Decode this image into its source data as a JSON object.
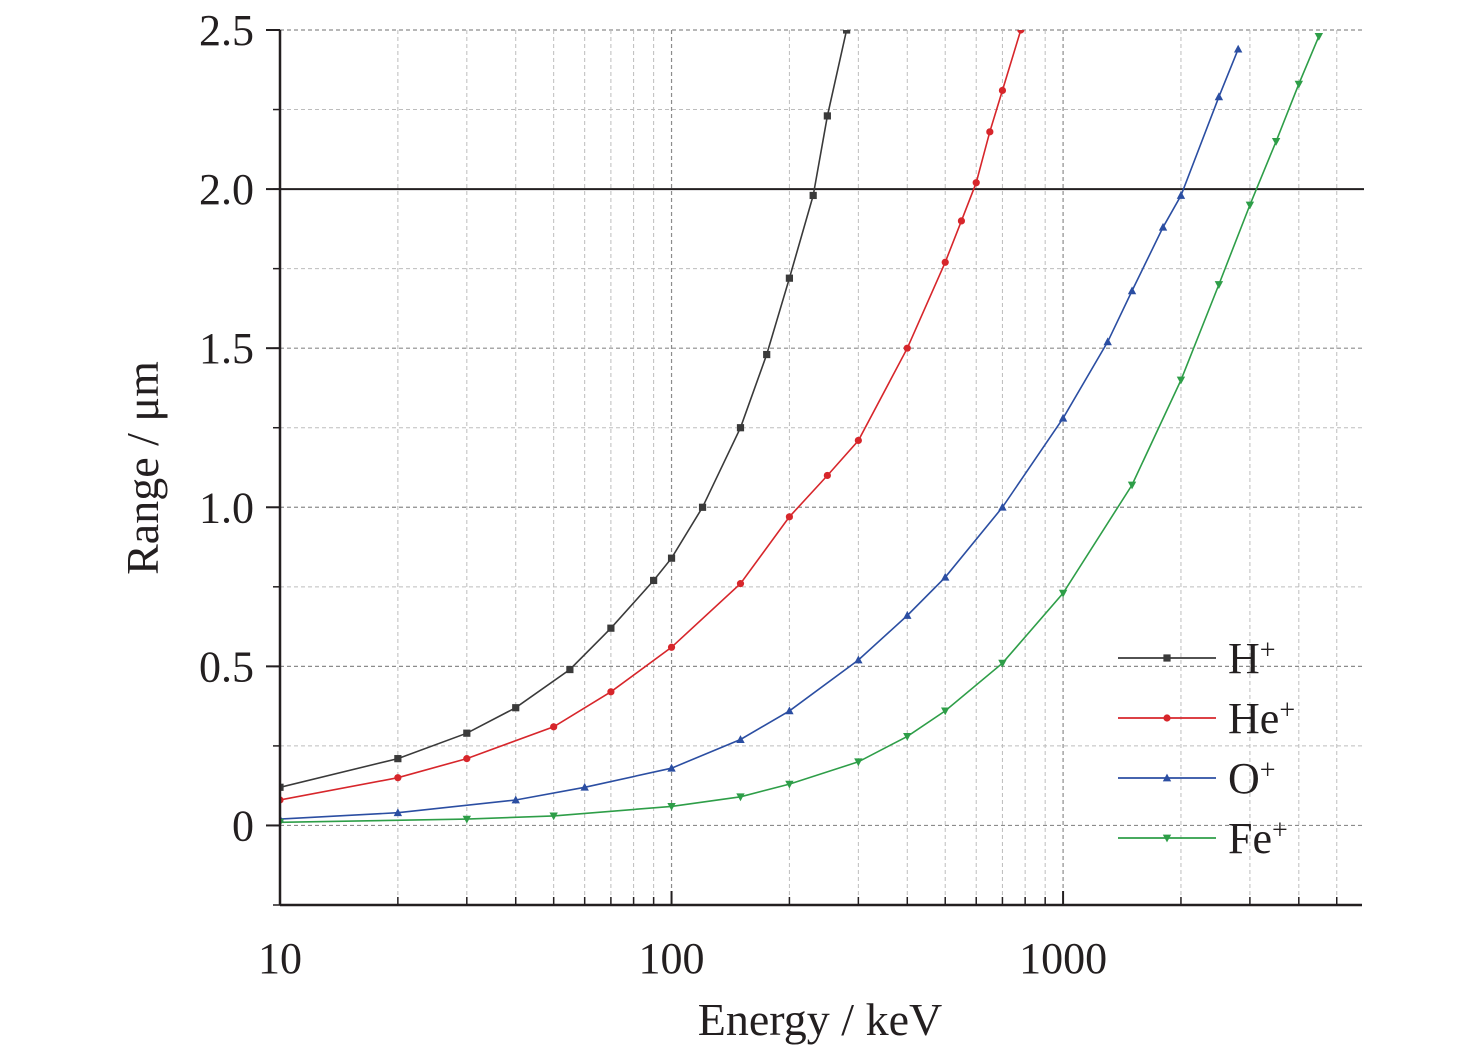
{
  "chart_data": {
    "type": "line",
    "xlabel": "Energy / keV",
    "ylabel": "Range / μm",
    "x_scale": "log",
    "xlim": [
      10,
      5800
    ],
    "ylim": [
      -0.25,
      2.5
    ],
    "x_ticks": [
      {
        "value": 10,
        "label": "10"
      },
      {
        "value": 100,
        "label": "100"
      },
      {
        "value": 1000,
        "label": "1000"
      }
    ],
    "y_ticks": [
      {
        "value": 0,
        "label": "0"
      },
      {
        "value": 0.5,
        "label": "0.5"
      },
      {
        "value": 1.0,
        "label": "1.0"
      },
      {
        "value": 1.5,
        "label": "1.5"
      },
      {
        "value": 2.0,
        "label": "2.0"
      },
      {
        "value": 2.5,
        "label": "2.5"
      }
    ],
    "grid": true,
    "reference_line": {
      "y": 2.0
    },
    "legend_position": "bottom-right",
    "series": [
      {
        "name": "H",
        "name_sup": "+",
        "color": "#3a3a3a",
        "marker": "square",
        "x": [
          10,
          20,
          30,
          40,
          55,
          70,
          90,
          100,
          120,
          150,
          175,
          200,
          230,
          250,
          280
        ],
        "y": [
          0.12,
          0.21,
          0.29,
          0.37,
          0.49,
          0.62,
          0.77,
          0.84,
          1.0,
          1.25,
          1.48,
          1.72,
          1.98,
          2.23,
          2.5
        ]
      },
      {
        "name": "He",
        "name_sup": "+",
        "color": "#d7262b",
        "marker": "circle",
        "x": [
          10,
          20,
          30,
          50,
          70,
          100,
          150,
          200,
          250,
          300,
          400,
          500,
          550,
          600,
          650,
          700,
          780
        ],
        "y": [
          0.08,
          0.15,
          0.21,
          0.31,
          0.42,
          0.56,
          0.76,
          0.97,
          1.1,
          1.21,
          1.5,
          1.77,
          1.9,
          2.02,
          2.18,
          2.31,
          2.5
        ]
      },
      {
        "name": "O",
        "name_sup": "+",
        "color": "#2b4ea2",
        "marker": "triangle-up",
        "x": [
          10,
          20,
          40,
          60,
          100,
          150,
          200,
          300,
          400,
          500,
          700,
          1000,
          1300,
          1500,
          1800,
          2000,
          2500,
          2800
        ],
        "y": [
          0.02,
          0.04,
          0.08,
          0.12,
          0.18,
          0.27,
          0.36,
          0.52,
          0.66,
          0.78,
          1.0,
          1.28,
          1.52,
          1.68,
          1.88,
          1.98,
          2.29,
          2.44
        ]
      },
      {
        "name": "Fe",
        "name_sup": "+",
        "color": "#2e9e48",
        "marker": "triangle-down",
        "x": [
          10,
          30,
          50,
          100,
          150,
          200,
          300,
          400,
          500,
          700,
          1000,
          1500,
          2000,
          2500,
          3000,
          3500,
          4000,
          4500
        ],
        "y": [
          0.01,
          0.02,
          0.03,
          0.06,
          0.09,
          0.13,
          0.2,
          0.28,
          0.36,
          0.51,
          0.73,
          1.07,
          1.4,
          1.7,
          1.95,
          2.15,
          2.33,
          2.48
        ]
      }
    ]
  }
}
